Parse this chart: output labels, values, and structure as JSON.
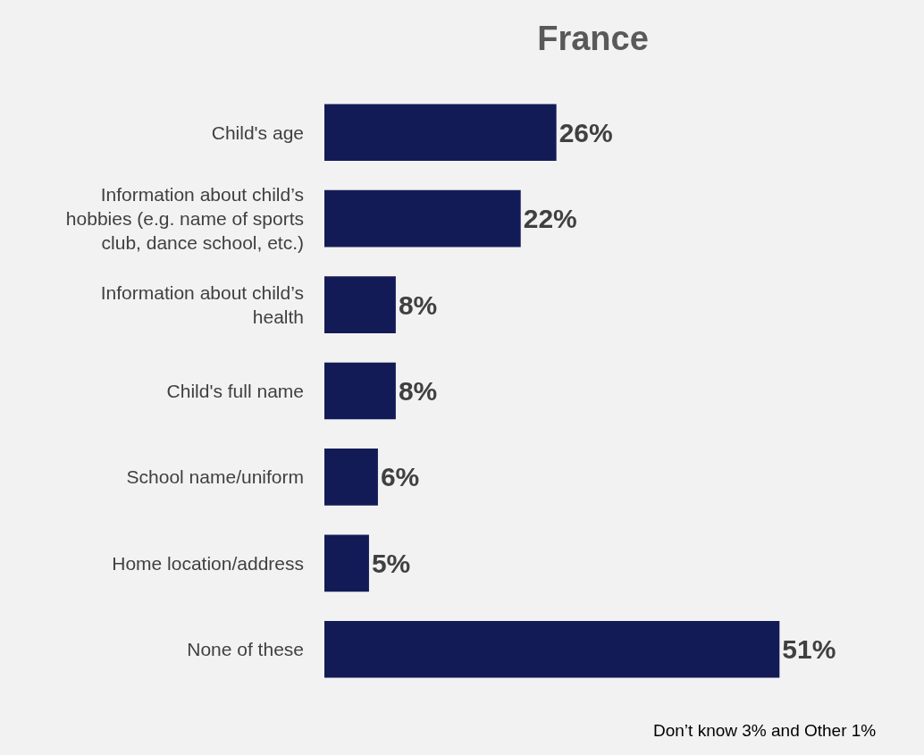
{
  "chart_data": {
    "type": "bar",
    "orientation": "horizontal",
    "title": "France",
    "categories": [
      "Child's age",
      "Information about child’s hobbies (e.g. name of sports club, dance school, etc.)",
      "Information about child’s health",
      "Child's full name",
      "School name/uniform",
      "Home location/address",
      "None of these"
    ],
    "values": [
      26,
      22,
      8,
      8,
      6,
      5,
      51
    ],
    "value_labels": [
      "26%",
      "22%",
      "8%",
      "8%",
      "6%",
      "5%",
      "51%"
    ],
    "color": "#131b57",
    "annotations": [
      "Don’t know 3% and Other 1%"
    ]
  }
}
